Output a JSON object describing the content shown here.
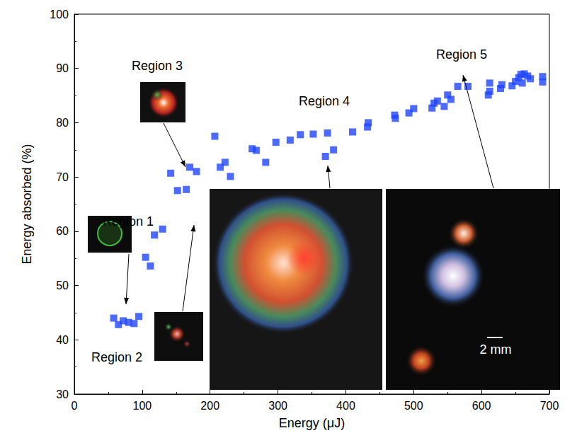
{
  "chart_data": {
    "type": "scatter",
    "x_label": "Energy (μJ)",
    "y_label": "Energy absorbed (%)",
    "color": "#1f45fc",
    "marker": "square",
    "x": [
      58,
      65,
      72,
      80,
      88,
      95,
      105,
      112,
      118,
      130,
      142,
      152,
      165,
      170,
      180,
      207,
      215,
      222,
      230,
      262,
      268,
      282,
      297,
      318,
      333,
      352,
      370,
      373,
      382,
      410,
      432,
      433,
      472,
      473,
      493,
      500,
      527,
      530,
      535,
      545,
      550,
      555,
      565,
      580,
      610,
      612,
      612,
      628,
      630,
      645,
      650,
      655,
      658,
      660,
      663,
      668,
      672,
      690,
      690
    ],
    "values": [
      44,
      42.8,
      43.5,
      43.2,
      43,
      44.3,
      55.2,
      53.6,
      59.3,
      60.4,
      70.7,
      67.5,
      67.7,
      71.8,
      71,
      77.5,
      71.8,
      72.7,
      70.1,
      75.2,
      74.9,
      72.7,
      76.4,
      76.8,
      77.8,
      77.9,
      73.8,
      78.1,
      75,
      78.3,
      79.2,
      80,
      81.4,
      80.8,
      81.8,
      82.6,
      82.7,
      83.6,
      84,
      83,
      85.1,
      84.3,
      86.7,
      86.7,
      85.1,
      85.8,
      87.3,
      86.3,
      87,
      86.8,
      87.6,
      88.3,
      88.9,
      87.3,
      89,
      88.6,
      88.1,
      88.5,
      87.5
    ],
    "xlim": [
      0,
      700
    ],
    "xticks": [
      0,
      100,
      200,
      300,
      400,
      500,
      600,
      700
    ],
    "ylim": [
      30,
      100
    ],
    "yticks": [
      30,
      40,
      50,
      60,
      70,
      80,
      90,
      100
    ],
    "grid": false,
    "annotations": [
      "Region 1",
      "Region 2",
      "Region 3",
      "Region 4",
      "Region 5"
    ],
    "scale_bar_label": "2 mm"
  }
}
